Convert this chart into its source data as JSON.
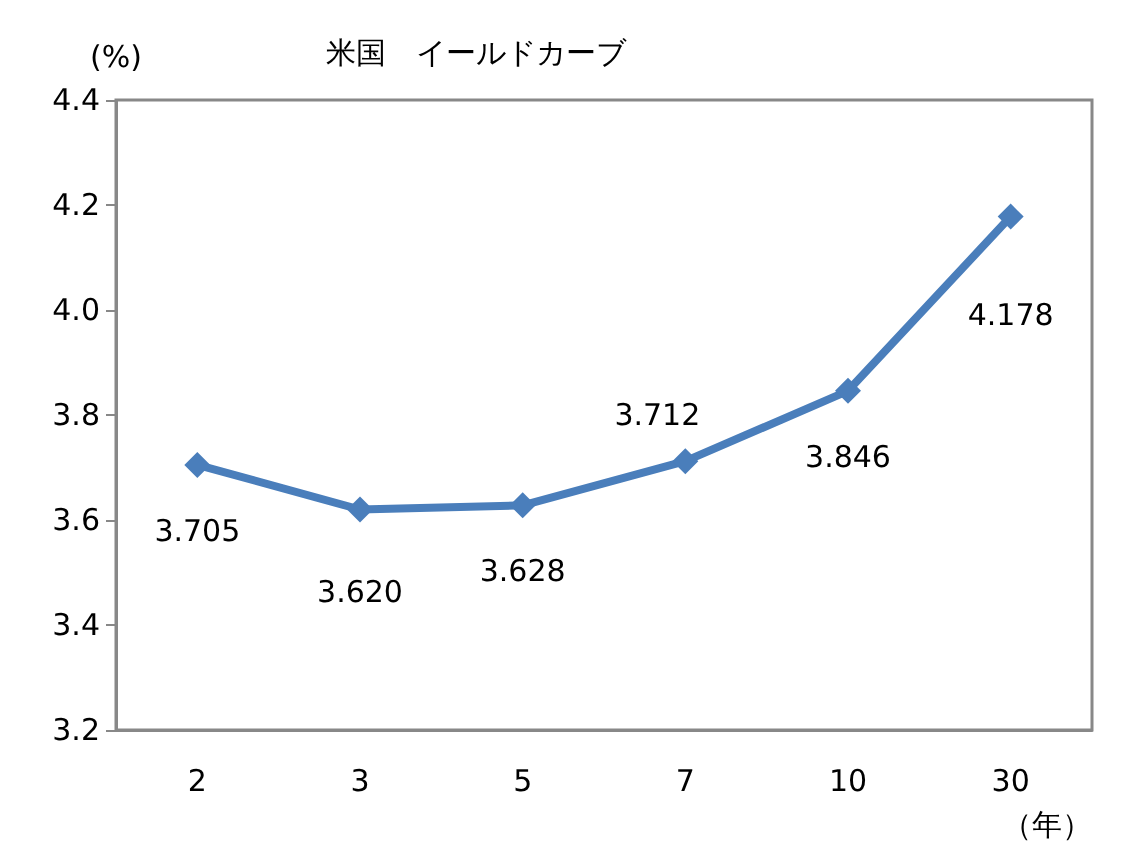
{
  "chart_data": {
    "type": "line",
    "title": "米国　イールドカーブ",
    "ylabel": "(%)",
    "xlabel": "（年）",
    "categories": [
      "2",
      "3",
      "5",
      "7",
      "10",
      "30"
    ],
    "series": [
      {
        "color": "#4a7ebb",
        "values": [
          3.705,
          3.62,
          3.628,
          3.712,
          3.846,
          4.178
        ],
        "value_labels": [
          "3.705",
          "3.620",
          "3.628",
          "3.712",
          "3.846",
          "4.178"
        ]
      }
    ],
    "ylim": [
      3.2,
      4.4
    ],
    "yticks": [
      {
        "value": 3.2,
        "label": "3.2"
      },
      {
        "value": 3.4,
        "label": "3.4"
      },
      {
        "value": 3.6,
        "label": "3.6"
      },
      {
        "value": 3.8,
        "label": "3.8"
      },
      {
        "value": 4,
        "label": "4.0"
      },
      {
        "value": 4.2,
        "label": "4.2"
      },
      {
        "value": 4.4,
        "label": "4.4"
      }
    ],
    "grid": false,
    "marker": "diamond",
    "line_style": "solid"
  }
}
